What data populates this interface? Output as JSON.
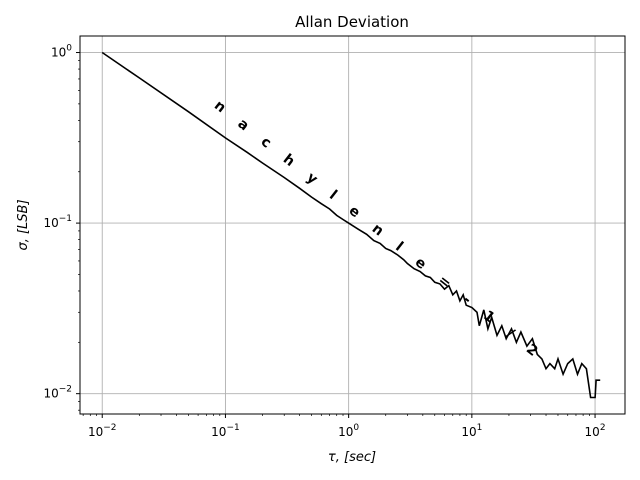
{
  "chart_data": {
    "type": "line",
    "title": "Allan Deviation",
    "xlabel": "τ, [sec]",
    "ylabel": "σ, [LSB]",
    "xscale": "log",
    "yscale": "log",
    "xlim": [
      0.0066,
      175
    ],
    "ylim": [
      0.0076,
      1.25
    ],
    "grid": true,
    "xticks": [
      {
        "value": 0.01,
        "base": "10",
        "exp": "−2"
      },
      {
        "value": 0.1,
        "base": "10",
        "exp": "−1"
      },
      {
        "value": 1,
        "base": "10",
        "exp": "0"
      },
      {
        "value": 10,
        "base": "10",
        "exp": "1"
      },
      {
        "value": 100,
        "base": "10",
        "exp": "2"
      }
    ],
    "yticks": [
      {
        "value": 0.01,
        "base": "10",
        "exp": "−2"
      },
      {
        "value": 0.1,
        "base": "10",
        "exp": "−1"
      },
      {
        "value": 1,
        "base": "10",
        "exp": "0"
      }
    ],
    "annotation": {
      "text": "n a c h y l e n l e   =   - 1 / 2",
      "x": 0.08,
      "y": 0.48
    },
    "series": [
      {
        "color": "#000000",
        "points": [
          [
            0.01,
            1.0
          ],
          [
            0.02,
            0.71
          ],
          [
            0.05,
            0.45
          ],
          [
            0.1,
            0.316
          ],
          [
            0.15,
            0.26
          ],
          [
            0.2,
            0.225
          ],
          [
            0.3,
            0.185
          ],
          [
            0.4,
            0.16
          ],
          [
            0.5,
            0.142
          ],
          [
            0.6,
            0.13
          ],
          [
            0.7,
            0.121
          ],
          [
            0.8,
            0.111
          ],
          [
            0.9,
            0.105
          ],
          [
            1.0,
            0.1
          ],
          [
            1.2,
            0.092
          ],
          [
            1.4,
            0.086
          ],
          [
            1.6,
            0.079
          ],
          [
            1.8,
            0.076
          ],
          [
            2.0,
            0.071
          ],
          [
            2.2,
            0.069
          ],
          [
            2.5,
            0.065
          ],
          [
            2.8,
            0.061
          ],
          [
            3.0,
            0.058
          ],
          [
            3.4,
            0.054
          ],
          [
            3.8,
            0.052
          ],
          [
            4.2,
            0.049
          ],
          [
            4.6,
            0.048
          ],
          [
            5.0,
            0.045
          ],
          [
            5.5,
            0.044
          ],
          [
            6.0,
            0.041
          ],
          [
            6.5,
            0.043
          ],
          [
            7.0,
            0.038
          ],
          [
            7.5,
            0.04
          ],
          [
            8.0,
            0.035
          ],
          [
            8.5,
            0.038
          ],
          [
            9.0,
            0.033
          ],
          [
            10.0,
            0.032
          ],
          [
            11.0,
            0.03
          ],
          [
            11.5,
            0.025
          ],
          [
            12.5,
            0.031
          ],
          [
            13.5,
            0.024
          ],
          [
            14.5,
            0.028
          ],
          [
            16.0,
            0.022
          ],
          [
            17.5,
            0.025
          ],
          [
            19.0,
            0.021
          ],
          [
            21.0,
            0.024
          ],
          [
            23.0,
            0.02
          ],
          [
            25.0,
            0.023
          ],
          [
            28.0,
            0.019
          ],
          [
            31.0,
            0.021
          ],
          [
            34.0,
            0.017
          ],
          [
            37.0,
            0.016
          ],
          [
            40.0,
            0.014
          ],
          [
            43.0,
            0.015
          ],
          [
            47.0,
            0.014
          ],
          [
            50.0,
            0.016
          ],
          [
            55.0,
            0.013
          ],
          [
            60.0,
            0.015
          ],
          [
            66.0,
            0.016
          ],
          [
            72.0,
            0.013
          ],
          [
            78.0,
            0.015
          ],
          [
            85.0,
            0.014
          ],
          [
            92.0,
            0.0095
          ],
          [
            100.0,
            0.0095
          ],
          [
            102.0,
            0.012
          ],
          [
            110.0,
            0.012
          ]
        ]
      }
    ]
  }
}
